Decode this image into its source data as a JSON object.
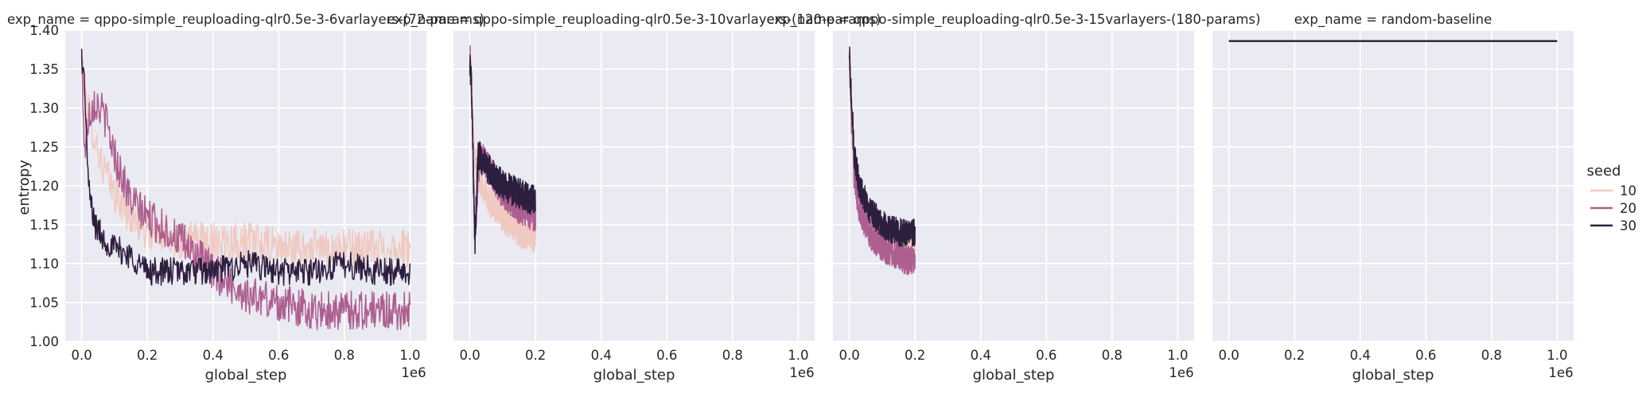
{
  "figure": {
    "legend": {
      "title": "seed",
      "placement": "right"
    },
    "y_axis_label": "entropy",
    "x_axis_label": "global_step",
    "x_offset_label": "1e6"
  },
  "chart_data": [
    {
      "type": "line",
      "title": "exp_name = qppo-simple_reuploading-qlr0.5e-3-6varlayers-(72-params)",
      "xlabel": "global_step",
      "ylabel": "entropy",
      "xlim": [
        -50000,
        1050000
      ],
      "ylim": [
        1.0,
        1.4
      ],
      "xticks": [
        0,
        200000,
        400000,
        600000,
        800000,
        1000000
      ],
      "xtick_labels": [
        "0.0",
        "0.2",
        "0.4",
        "0.6",
        "0.8",
        "1.0"
      ],
      "yticks": [
        1.0,
        1.05,
        1.1,
        1.15,
        1.2,
        1.25,
        1.3,
        1.35,
        1.4
      ],
      "ytick_labels": [
        "1.00",
        "1.05",
        "1.10",
        "1.15",
        "1.20",
        "1.25",
        "1.30",
        "1.35",
        "1.40"
      ],
      "x_offset_label": "1e6",
      "grid": true,
      "noise": [
        0.025,
        0.025,
        0.018
      ],
      "series": [
        {
          "name": "10",
          "color": "#f0c9c0",
          "x": [
            0,
            10000,
            30000,
            60000,
            100000,
            150000,
            200000,
            300000,
            400000,
            500000,
            600000,
            700000,
            800000,
            900000,
            1000000
          ],
          "y": [
            1.36,
            1.32,
            1.28,
            1.23,
            1.19,
            1.16,
            1.14,
            1.13,
            1.13,
            1.13,
            1.12,
            1.12,
            1.12,
            1.12,
            1.12
          ]
        },
        {
          "name": "20",
          "color": "#ad5f8f",
          "x": [
            0,
            10000,
            20000,
            40000,
            70000,
            100000,
            150000,
            200000,
            300000,
            400000,
            500000,
            600000,
            700000,
            800000,
            900000,
            1000000
          ],
          "y": [
            1.36,
            1.24,
            1.29,
            1.31,
            1.29,
            1.24,
            1.18,
            1.16,
            1.13,
            1.09,
            1.06,
            1.05,
            1.04,
            1.04,
            1.04,
            1.04
          ]
        },
        {
          "name": "30",
          "color": "#2d1e3e",
          "x": [
            0,
            10000,
            20000,
            40000,
            70000,
            100000,
            150000,
            200000,
            300000,
            400000,
            500000,
            600000,
            700000,
            800000,
            900000,
            1000000
          ],
          "y": [
            1.37,
            1.32,
            1.2,
            1.15,
            1.13,
            1.12,
            1.11,
            1.09,
            1.09,
            1.09,
            1.1,
            1.09,
            1.09,
            1.1,
            1.09,
            1.09
          ]
        }
      ]
    },
    {
      "type": "line",
      "title": "exp_name = qppo-simple_reuploading-qlr0.5e-3-10varlayers-(120-params)",
      "xlabel": "global_step",
      "ylabel": "",
      "xlim": [
        -50000,
        1050000
      ],
      "ylim": [
        1.0,
        1.4
      ],
      "xticks": [
        0,
        200000,
        400000,
        600000,
        800000,
        1000000
      ],
      "xtick_labels": [
        "0.0",
        "0.2",
        "0.4",
        "0.6",
        "0.8",
        "1.0"
      ],
      "x_offset_label": "1e6",
      "grid": true,
      "noise": [
        0.02,
        0.02,
        0.02
      ],
      "series": [
        {
          "name": "10",
          "color": "#f0c9c0",
          "x": [
            0,
            5000,
            15000,
            30000,
            60000,
            100000,
            150000,
            200000
          ],
          "y": [
            1.37,
            1.31,
            1.24,
            1.21,
            1.18,
            1.16,
            1.14,
            1.13
          ]
        },
        {
          "name": "20",
          "color": "#ad5f8f",
          "x": [
            0,
            5000,
            15000,
            30000,
            60000,
            100000,
            150000,
            200000
          ],
          "y": [
            1.37,
            1.33,
            1.14,
            1.24,
            1.22,
            1.19,
            1.17,
            1.16
          ]
        },
        {
          "name": "30",
          "color": "#2d1e3e",
          "x": [
            0,
            5000,
            15000,
            25000,
            40000,
            60000,
            100000,
            150000,
            200000
          ],
          "y": [
            1.36,
            1.33,
            1.12,
            1.24,
            1.23,
            1.22,
            1.2,
            1.19,
            1.18
          ]
        }
      ]
    },
    {
      "type": "line",
      "title": "exp_name = qppo-simple_reuploading-qlr0.5e-3-15varlayers-(180-params)",
      "xlabel": "global_step",
      "ylabel": "",
      "xlim": [
        -50000,
        1050000
      ],
      "ylim": [
        1.0,
        1.4
      ],
      "xticks": [
        0,
        200000,
        400000,
        600000,
        800000,
        1000000
      ],
      "xtick_labels": [
        "0.0",
        "0.2",
        "0.4",
        "0.6",
        "0.8",
        "1.0"
      ],
      "x_offset_label": "1e6",
      "grid": true,
      "noise": [
        0.02,
        0.02,
        0.018
      ],
      "series": [
        {
          "name": "10",
          "color": "#f0c9c0",
          "x": [
            0,
            5000,
            15000,
            30000,
            60000,
            100000,
            150000,
            200000
          ],
          "y": [
            1.36,
            1.3,
            1.23,
            1.18,
            1.15,
            1.13,
            1.12,
            1.12
          ]
        },
        {
          "name": "20",
          "color": "#ad5f8f",
          "x": [
            0,
            5000,
            15000,
            30000,
            60000,
            100000,
            150000,
            200000
          ],
          "y": [
            1.37,
            1.3,
            1.21,
            1.17,
            1.14,
            1.12,
            1.11,
            1.1
          ]
        },
        {
          "name": "30",
          "color": "#2d1e3e",
          "x": [
            0,
            5000,
            15000,
            30000,
            60000,
            100000,
            150000,
            200000
          ],
          "y": [
            1.37,
            1.32,
            1.24,
            1.2,
            1.17,
            1.15,
            1.14,
            1.14
          ]
        }
      ]
    },
    {
      "type": "line",
      "title": "exp_name = random-baseline",
      "xlabel": "global_step",
      "ylabel": "",
      "xlim": [
        -50000,
        1050000
      ],
      "ylim": [
        1.0,
        1.4
      ],
      "xticks": [
        0,
        200000,
        400000,
        600000,
        800000,
        1000000
      ],
      "xtick_labels": [
        "0.0",
        "0.2",
        "0.4",
        "0.6",
        "0.8",
        "1.0"
      ],
      "x_offset_label": "1e6",
      "grid": true,
      "noise": [
        0,
        0,
        0
      ],
      "series": [
        {
          "name": "10",
          "color": "#f0c9c0",
          "x": [
            0,
            1000000
          ],
          "y": [
            1.386,
            1.386
          ]
        },
        {
          "name": "20",
          "color": "#ad5f8f",
          "x": [
            0,
            1000000
          ],
          "y": [
            1.386,
            1.386
          ]
        },
        {
          "name": "30",
          "color": "#2d1e3e",
          "x": [
            0,
            1000000
          ],
          "y": [
            1.386,
            1.386
          ]
        }
      ]
    }
  ]
}
